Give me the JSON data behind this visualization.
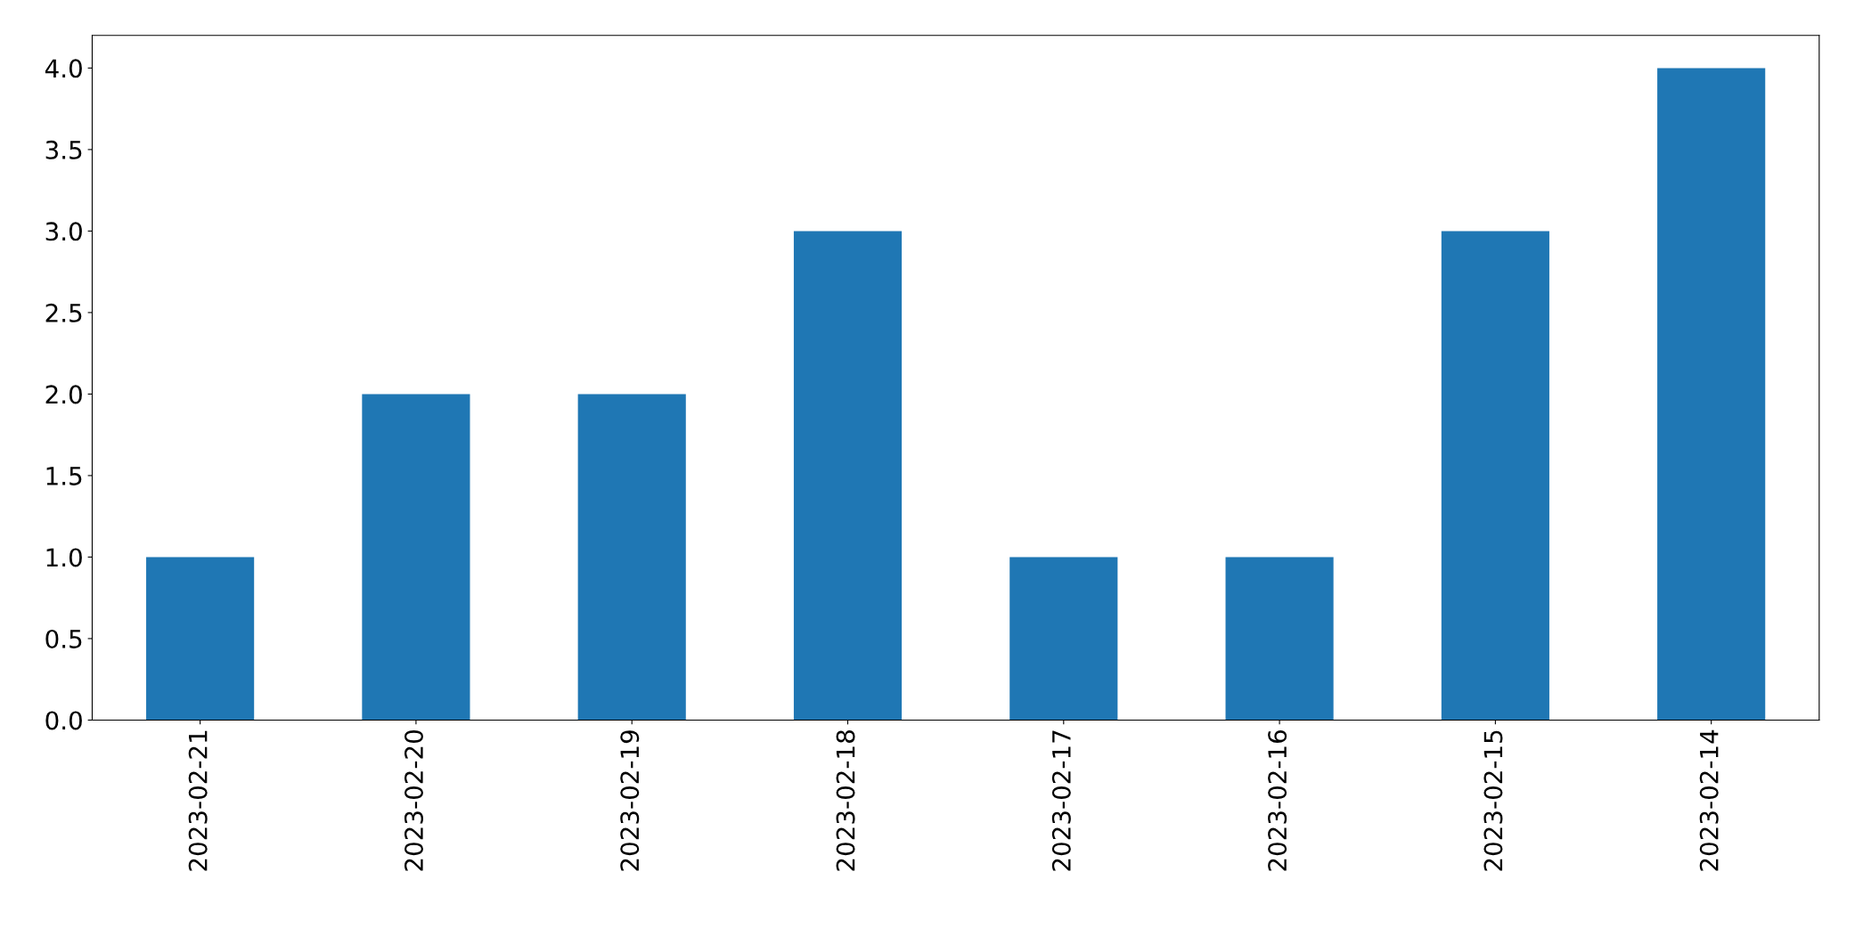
{
  "chart_data": {
    "type": "bar",
    "categories": [
      "2023-02-21",
      "2023-02-20",
      "2023-02-19",
      "2023-02-18",
      "2023-02-17",
      "2023-02-16",
      "2023-02-15",
      "2023-02-14"
    ],
    "values": [
      1,
      2,
      2,
      3,
      1,
      1,
      3,
      4
    ],
    "color": "#1f77b4",
    "ylim": [
      0,
      4.2
    ],
    "yticks": [
      {
        "value": 0,
        "label": "0.0"
      },
      {
        "value": 0.5,
        "label": "0.5"
      },
      {
        "value": 1,
        "label": "1.0"
      },
      {
        "value": 1.5,
        "label": "1.5"
      },
      {
        "value": 2,
        "label": "2.0"
      },
      {
        "value": 2.5,
        "label": "2.5"
      },
      {
        "value": 3,
        "label": "3.0"
      },
      {
        "value": 3.5,
        "label": "3.5"
      },
      {
        "value": 4,
        "label": "4.0"
      }
    ],
    "grid": false,
    "legend": false
  }
}
